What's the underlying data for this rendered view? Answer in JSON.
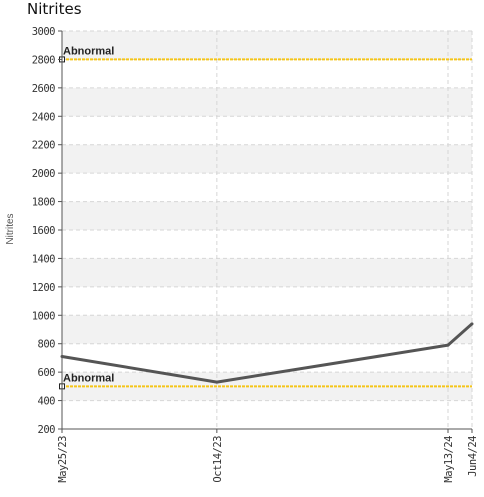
{
  "chart_data": {
    "type": "line",
    "title": "Nitrites",
    "ylabel": "Nitrites",
    "xlabel": "",
    "ylim": [
      200,
      3000
    ],
    "yticks": [
      200,
      400,
      600,
      800,
      1000,
      1200,
      1400,
      1600,
      1800,
      2000,
      2200,
      2400,
      2600,
      2800,
      3000
    ],
    "categories": [
      "May25/23",
      "Oct14/23",
      "May13/24",
      "Jun4/24"
    ],
    "x": [
      "2023-05-25",
      "2023-10-14",
      "2024-05-13",
      "2024-06-04"
    ],
    "series": [
      {
        "values": [
          710,
          530,
          790,
          940
        ],
        "color": "#555555"
      }
    ],
    "reference_lines": [
      {
        "label": "Abnormal",
        "value": 2800,
        "color": "#f5c518"
      },
      {
        "label": "Abnormal",
        "value": 500,
        "color": "#f5c518"
      }
    ],
    "grid": true,
    "band_colors": [
      "#f2f2f2",
      "#ffffff"
    ]
  }
}
